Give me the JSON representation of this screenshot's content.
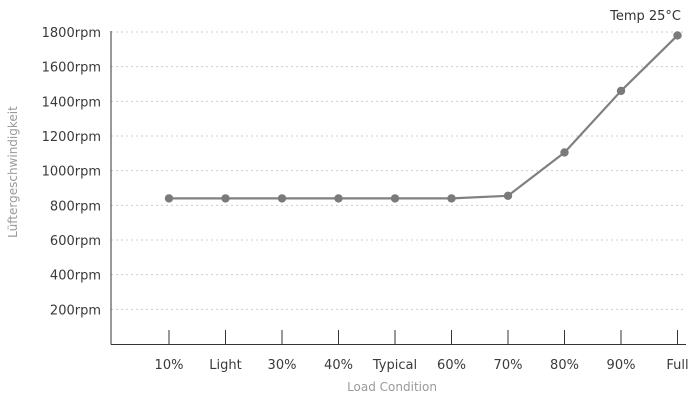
{
  "chart_data": {
    "type": "line",
    "title": "",
    "annotation": "Temp 25°C",
    "xlabel": "Load Condition",
    "ylabel": "Lüftergeschwindigkeit",
    "categories": [
      "10%",
      "Light",
      "30%",
      "40%",
      "Typical",
      "60%",
      "70%",
      "80%",
      "90%",
      "Full"
    ],
    "series": [
      {
        "values": [
          840,
          840,
          840,
          840,
          840,
          840,
          855,
          1105,
          1460,
          1780
        ]
      }
    ],
    "ylim": [
      0,
      1800
    ],
    "yticks": [
      200,
      400,
      600,
      800,
      1000,
      1200,
      1400,
      1600,
      1800
    ],
    "ytick_labels": [
      "200rpm",
      "400rpm",
      "600rpm",
      "800rpm",
      "1000rpm",
      "1200rpm",
      "1400rpm",
      "1600rpm",
      "1800rpm"
    ],
    "grid": true,
    "legend": "none",
    "colors": {
      "line": "#808080",
      "marker": "#7a7a7a",
      "grid": "#cccccc",
      "axis": "#333333"
    }
  }
}
